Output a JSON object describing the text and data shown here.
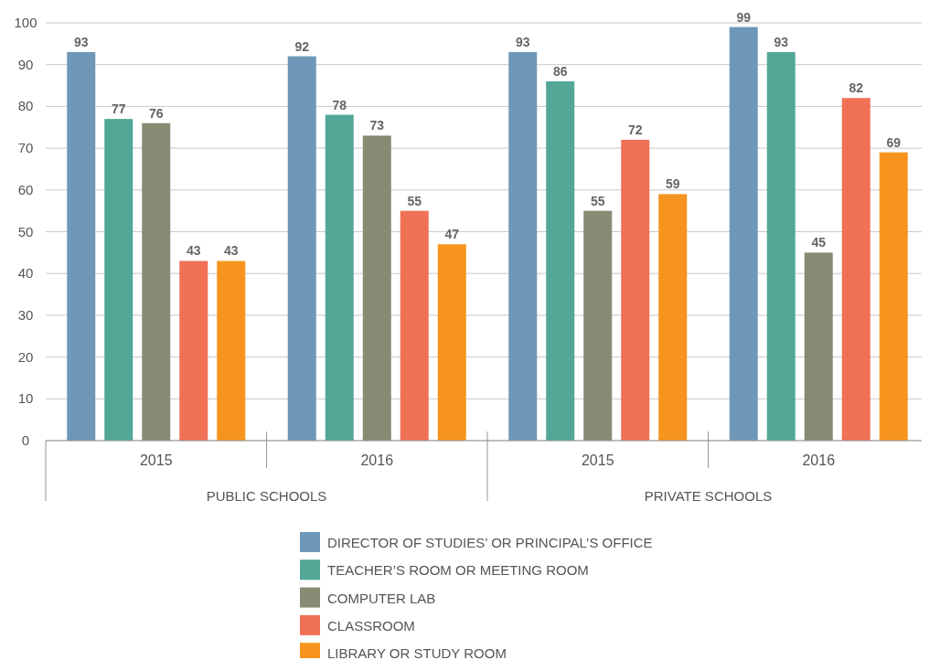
{
  "chart_data": {
    "type": "bar",
    "categories": [
      "2015",
      "2016",
      "2015",
      "2016"
    ],
    "series": [
      {
        "name": "DIRECTOR OF STUDIES’ OR PRINCIPAL’S OFFICE",
        "color": "#6f98b8",
        "values": [
          93,
          92,
          93,
          99
        ]
      },
      {
        "name": "TEACHER’S ROOM OR MEETING ROOM",
        "color": "#52a797",
        "values": [
          77,
          78,
          86,
          93
        ]
      },
      {
        "name": "COMPUTER LAB",
        "color": "#878b74",
        "values": [
          76,
          73,
          55,
          45
        ]
      },
      {
        "name": "CLASSROOM",
        "color": "#f07155",
        "values": [
          43,
          55,
          72,
          82
        ]
      },
      {
        "name": "LIBRARY OR STUDY ROOM",
        "color": "#f7941d",
        "values": [
          43,
          47,
          59,
          69
        ]
      }
    ],
    "annotations": [
      "PUBLIC SCHOOLS",
      "PRIVATE SCHOOLS"
    ],
    "ylim": [
      0,
      100
    ],
    "yticks": [
      0,
      10,
      20,
      30,
      40,
      50,
      60,
      70,
      80,
      90,
      100
    ],
    "grid": "y",
    "data_labels": true,
    "legend": "bottom"
  }
}
